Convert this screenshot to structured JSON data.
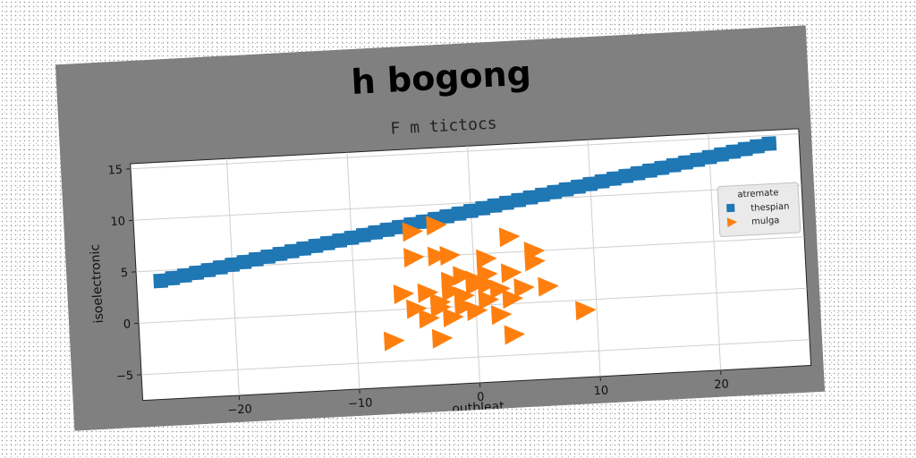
{
  "chart_data": {
    "type": "scatter",
    "suptitle": "h bogong",
    "title": "F m tictocs",
    "xlabel": "outbleat",
    "ylabel": "isoelectronic",
    "xlim": [
      -28,
      27.5
    ],
    "ylim": [
      -7.5,
      15.5
    ],
    "xticks": [
      -20,
      -10,
      0,
      10,
      20
    ],
    "yticks": [
      -5,
      0,
      5,
      10,
      15
    ],
    "grid": true,
    "legend": {
      "title": "atremate",
      "placement": "center-right"
    },
    "series": [
      {
        "name": "thespian",
        "marker": "square",
        "color": "#1f77b4",
        "x": [
          -26.0,
          -25.0,
          -24.0,
          -23.0,
          -22.0,
          -21.0,
          -20.0,
          -19.0,
          -18.0,
          -17.0,
          -16.0,
          -15.0,
          -14.0,
          -13.0,
          -12.0,
          -11.0,
          -10.0,
          -9.0,
          -8.0,
          -7.0,
          -6.0,
          -5.0,
          -4.0,
          -3.0,
          -2.0,
          -1.0,
          0.0,
          1.0,
          2.0,
          3.0,
          4.0,
          5.0,
          6.0,
          7.0,
          8.0,
          9.0,
          10.0,
          11.0,
          12.0,
          13.0,
          14.0,
          15.0,
          16.0,
          17.0,
          18.0,
          19.0,
          20.0,
          21.0,
          22.0,
          23.0,
          24.0,
          25.0
        ],
        "y": [
          4.0,
          4.2,
          4.4,
          4.6,
          4.8,
          5.0,
          5.2,
          5.4,
          5.6,
          5.8,
          6.0,
          6.2,
          6.4,
          6.6,
          6.8,
          7.0,
          7.2,
          7.4,
          7.6,
          7.8,
          8.0,
          8.2,
          8.4,
          8.6,
          8.8,
          9.0,
          9.2,
          9.4,
          9.6,
          9.8,
          10.0,
          10.2,
          10.4,
          10.6,
          10.8,
          11.0,
          11.2,
          11.4,
          11.6,
          11.8,
          12.0,
          12.2,
          12.4,
          12.6,
          12.8,
          13.0,
          13.2,
          13.4,
          13.6,
          13.8,
          14.0,
          14.2
        ]
      },
      {
        "name": "mulga",
        "marker": "triangle-right",
        "color": "#ff7f0e",
        "x": [
          -5.0,
          -3.0,
          3.0,
          -5.0,
          -3.0,
          -2.0,
          1.0,
          5.0,
          -1.0,
          1.0,
          3.0,
          5.0,
          -6.0,
          -4.0,
          -2.0,
          0.0,
          2.0,
          4.0,
          6.0,
          -5.0,
          -3.0,
          -1.0,
          1.0,
          3.0,
          -4.0,
          -2.0,
          0.0,
          2.0,
          -3.0,
          -1.0,
          1.0,
          9.0,
          -7.0,
          -3.0,
          3.0,
          -2.0,
          0.0
        ],
        "y": [
          7.5,
          8.0,
          6.5,
          5.0,
          5.0,
          5.0,
          4.5,
          5.0,
          3.0,
          3.0,
          3.0,
          4.0,
          1.5,
          1.5,
          1.5,
          2.0,
          1.5,
          1.5,
          1.5,
          0.0,
          0.0,
          0.0,
          0.5,
          0.5,
          -1.0,
          -1.0,
          -0.5,
          -1.0,
          0.5,
          1.0,
          2.0,
          -1.0,
          -3.0,
          -3.0,
          -3.0,
          2.5,
          2.5
        ]
      }
    ]
  }
}
